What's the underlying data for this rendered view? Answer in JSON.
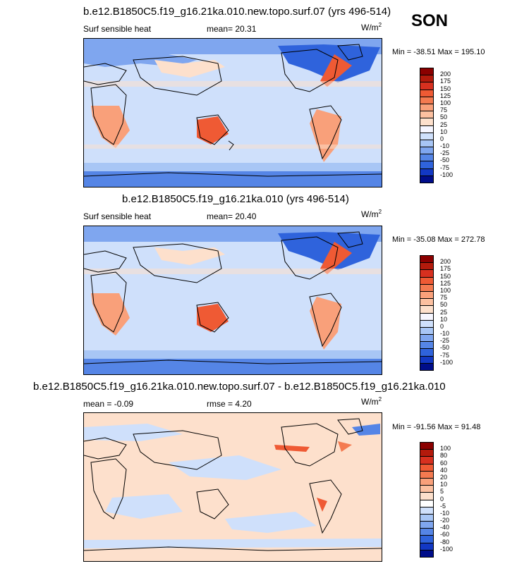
{
  "season": "SON",
  "panels": [
    {
      "title": "b.e12.B1850C5.f19_g16.21ka.010.new.topo.surf.07 (yrs 496-514)",
      "left_label": "Surf sensible heat",
      "stat1": "mean=  20.31",
      "stat2": "",
      "units_base": "W/m",
      "units_exp": "2",
      "minmax": "Min = -38.51 Max = 195.10",
      "levels": [
        "200",
        "175",
        "150",
        "125",
        "100",
        "75",
        "50",
        "25",
        "10",
        "0",
        "-10",
        "-25",
        "-50",
        "-75",
        "-100"
      ],
      "colors": [
        "#8b0000",
        "#b31a0c",
        "#d7301f",
        "#ef5a34",
        "#f47a50",
        "#f9a07a",
        "#fcc0a0",
        "#fde0cc",
        "#f6f6ff",
        "#cfe0fb",
        "#a8c6f5",
        "#7fa6ef",
        "#5585e6",
        "#2f63dc",
        "#1238c4",
        "#000d8a"
      ],
      "chart_data": {
        "type": "heatmap",
        "title": "b.e12.B1850C5.f19_g16.21ka.010.new.topo.surf.07 (yrs 496-514)",
        "variable": "Surf sensible heat",
        "units": "W/m2",
        "mean": 20.31,
        "min": -38.51,
        "max": 195.1,
        "contour_levels": [
          -100,
          -75,
          -50,
          -25,
          -10,
          0,
          10,
          25,
          50,
          75,
          100,
          125,
          150,
          175,
          200
        ]
      }
    },
    {
      "title": "b.e12.B1850C5.f19_g16.21ka.010 (yrs 496-514)",
      "left_label": "Surf sensible heat",
      "stat1": "mean=  20.40",
      "stat2": "",
      "units_base": "W/m",
      "units_exp": "2",
      "minmax": "Min = -35.08 Max = 272.78",
      "levels": [
        "200",
        "175",
        "150",
        "125",
        "100",
        "75",
        "50",
        "25",
        "10",
        "0",
        "-10",
        "-25",
        "-50",
        "-75",
        "-100"
      ],
      "colors": [
        "#8b0000",
        "#b31a0c",
        "#d7301f",
        "#ef5a34",
        "#f47a50",
        "#f9a07a",
        "#fcc0a0",
        "#fde0cc",
        "#f6f6ff",
        "#cfe0fb",
        "#a8c6f5",
        "#7fa6ef",
        "#5585e6",
        "#2f63dc",
        "#1238c4",
        "#000d8a"
      ],
      "chart_data": {
        "type": "heatmap",
        "title": "b.e12.B1850C5.f19_g16.21ka.010 (yrs 496-514)",
        "variable": "Surf sensible heat",
        "units": "W/m2",
        "mean": 20.4,
        "min": -35.08,
        "max": 272.78,
        "contour_levels": [
          -100,
          -75,
          -50,
          -25,
          -10,
          0,
          10,
          25,
          50,
          75,
          100,
          125,
          150,
          175,
          200
        ]
      }
    },
    {
      "title": "b.e12.B1850C5.f19_g16.21ka.010.new.topo.surf.07 - b.e12.B1850C5.f19_g16.21ka.010",
      "left_label": "mean =  -0.09",
      "stat1": "",
      "stat2": "rmse =   4.20",
      "units_base": "W/m",
      "units_exp": "2",
      "minmax": "Min = -91.56 Max = 91.48",
      "levels": [
        "100",
        "80",
        "60",
        "40",
        "20",
        "10",
        "5",
        "0",
        "-5",
        "-10",
        "-20",
        "-40",
        "-60",
        "-80",
        "-100"
      ],
      "colors": [
        "#8b0000",
        "#b31a0c",
        "#d7301f",
        "#ef5a34",
        "#f47a50",
        "#f9a07a",
        "#fcc0a0",
        "#fde0cc",
        "#ffffff",
        "#cfe0fb",
        "#a8c6f5",
        "#7fa6ef",
        "#5585e6",
        "#2f63dc",
        "#1238c4",
        "#000d8a"
      ],
      "chart_data": {
        "type": "heatmap",
        "title": "b.e12.B1850C5.f19_g16.21ka.010.new.topo.surf.07 - b.e12.B1850C5.f19_g16.21ka.010",
        "units": "W/m2",
        "mean": -0.09,
        "rmse": 4.2,
        "min": -91.56,
        "max": 91.48,
        "contour_levels": [
          -100,
          -80,
          -60,
          -40,
          -20,
          -10,
          -5,
          0,
          5,
          10,
          20,
          40,
          60,
          80,
          100
        ]
      }
    }
  ]
}
